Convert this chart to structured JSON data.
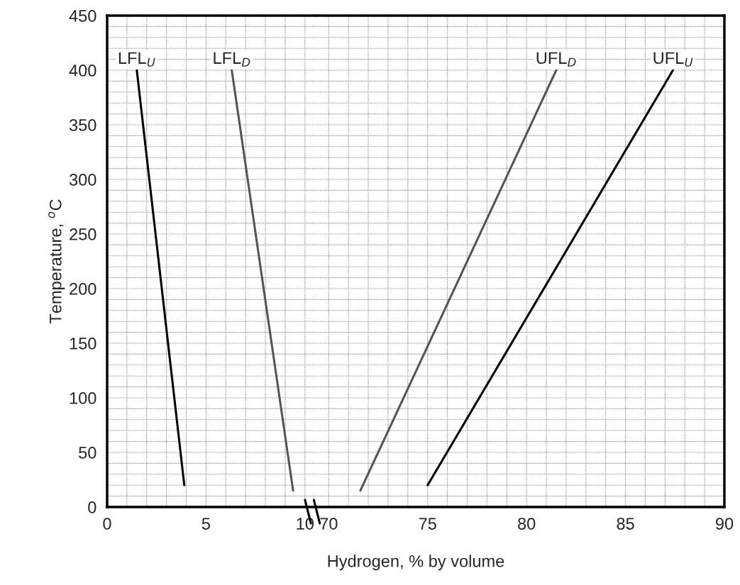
{
  "chart_data": [
    {
      "type": "line",
      "ylabel": "Temperature, $^{o}$C",
      "xlabel": "Hydrogen, % by volume",
      "xlim": [
        0,
        10.6
      ],
      "ylim": [
        0,
        450
      ],
      "xticks": [
        0,
        {
          "value": 1,
          "label": null
        },
        {
          "value": 2,
          "label": null
        },
        {
          "value": 3,
          "label": null
        },
        {
          "value": 4,
          "label": null
        },
        5,
        {
          "value": 6,
          "label": null
        },
        {
          "value": 7,
          "label": null
        },
        {
          "value": 8,
          "label": null
        },
        {
          "value": 9,
          "label": null
        },
        10
      ],
      "yticks": [
        0,
        {
          "value": 10,
          "label": null
        },
        {
          "value": 20,
          "label": null
        },
        {
          "value": 30,
          "label": null
        },
        {
          "value": 40,
          "label": null
        },
        50,
        {
          "value": 60,
          "label": null
        },
        {
          "value": 70,
          "label": null
        },
        {
          "value": 80,
          "label": null
        },
        {
          "value": 90,
          "label": null
        },
        100,
        {
          "value": 110,
          "label": null
        },
        {
          "value": 120,
          "label": null
        },
        {
          "value": 130,
          "label": null
        },
        {
          "value": 140,
          "label": null
        },
        150,
        {
          "value": 160,
          "label": null
        },
        {
          "value": 170,
          "label": null
        },
        {
          "value": 180,
          "label": null
        },
        {
          "value": 190,
          "label": null
        },
        200,
        {
          "value": 210,
          "label": null
        },
        {
          "value": 220,
          "label": null
        },
        {
          "value": 230,
          "label": null
        },
        {
          "value": 240,
          "label": null
        },
        250,
        {
          "value": 260,
          "label": null
        },
        {
          "value": 270,
          "label": null
        },
        {
          "value": 280,
          "label": null
        },
        {
          "value": 290,
          "label": null
        },
        300,
        {
          "value": 310,
          "label": null
        },
        {
          "value": 320,
          "label": null
        },
        {
          "value": 330,
          "label": null
        },
        {
          "value": 340,
          "label": null
        },
        350,
        {
          "value": 360,
          "label": null
        },
        {
          "value": 370,
          "label": null
        },
        {
          "value": 380,
          "label": null
        },
        {
          "value": 390,
          "label": null
        },
        400,
        {
          "value": 410,
          "label": null
        },
        {
          "value": 420,
          "label": null
        },
        {
          "value": 430,
          "label": null
        },
        {
          "value": 440,
          "label": null
        },
        450
      ],
      "grid": true,
      "series": [
        {
          "name": "LFL$_{U}$",
          "color": "#000000",
          "x": [
            3.9,
            1.5
          ],
          "values": [
            20,
            400
          ]
        },
        {
          "name": "LFL$_{D}$",
          "color": "#555555",
          "x": [
            9.4,
            6.3
          ],
          "values": [
            15,
            400
          ]
        }
      ]
    },
    {
      "type": "line",
      "xlim": [
        69.4,
        90
      ],
      "ylim": [
        0,
        450
      ],
      "tick_labels": "x",
      "xticks": [
        70,
        {
          "value": 71,
          "label": null
        },
        {
          "value": 72,
          "label": null
        },
        {
          "value": 73,
          "label": null
        },
        {
          "value": 74,
          "label": null
        },
        75,
        {
          "value": 76,
          "label": null
        },
        {
          "value": 77,
          "label": null
        },
        {
          "value": 78,
          "label": null
        },
        {
          "value": 79,
          "label": null
        },
        80,
        {
          "value": 81,
          "label": null
        },
        {
          "value": 82,
          "label": null
        },
        {
          "value": 83,
          "label": null
        },
        {
          "value": 84,
          "label": null
        },
        85,
        {
          "value": 86,
          "label": null
        },
        {
          "value": 87,
          "label": null
        },
        {
          "value": 88,
          "label": null
        },
        {
          "value": 89,
          "label": null
        },
        90
      ],
      "yticks": [
        0,
        {
          "value": 10,
          "label": null
        },
        {
          "value": 20,
          "label": null
        },
        {
          "value": 30,
          "label": null
        },
        {
          "value": 40,
          "label": null
        },
        50,
        {
          "value": 60,
          "label": null
        },
        {
          "value": 70,
          "label": null
        },
        {
          "value": 80,
          "label": null
        },
        {
          "value": 90,
          "label": null
        },
        100,
        {
          "value": 110,
          "label": null
        },
        {
          "value": 120,
          "label": null
        },
        {
          "value": 130,
          "label": null
        },
        {
          "value": 140,
          "label": null
        },
        150,
        {
          "value": 160,
          "label": null
        },
        {
          "value": 170,
          "label": null
        },
        {
          "value": 180,
          "label": null
        },
        {
          "value": 190,
          "label": null
        },
        200,
        {
          "value": 210,
          "label": null
        },
        {
          "value": 220,
          "label": null
        },
        {
          "value": 230,
          "label": null
        },
        {
          "value": 240,
          "label": null
        },
        250,
        {
          "value": 260,
          "label": null
        },
        {
          "value": 270,
          "label": null
        },
        {
          "value": 280,
          "label": null
        },
        {
          "value": 290,
          "label": null
        },
        300,
        {
          "value": 310,
          "label": null
        },
        {
          "value": 320,
          "label": null
        },
        {
          "value": 330,
          "label": null
        },
        {
          "value": 340,
          "label": null
        },
        350,
        {
          "value": 360,
          "label": null
        },
        {
          "value": 370,
          "label": null
        },
        {
          "value": 380,
          "label": null
        },
        {
          "value": 390,
          "label": null
        },
        400,
        {
          "value": 410,
          "label": null
        },
        {
          "value": 420,
          "label": null
        },
        {
          "value": 430,
          "label": null
        },
        {
          "value": 440,
          "label": null
        },
        450
      ],
      "grid": true,
      "series": [
        {
          "name": "UFL$_{D}$",
          "color": "#555555",
          "x": [
            71.6,
            81.5
          ],
          "values": [
            15,
            400
          ]
        },
        {
          "name": "UFL$_{U}$",
          "color": "#000000",
          "x": [
            75,
            87.4
          ],
          "values": [
            20,
            400
          ]
        }
      ]
    }
  ]
}
